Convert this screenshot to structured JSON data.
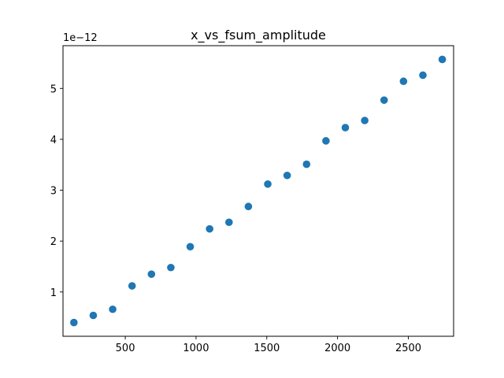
{
  "chart_data": {
    "type": "scatter",
    "title": "x_vs_fsum_amplitude",
    "xlabel": "",
    "ylabel": "",
    "y_offset_label": "1e−12",
    "xlim": [
      60,
      2820
    ],
    "ylim": [
      0.13,
      5.84
    ],
    "x_ticks": [
      500,
      1000,
      1500,
      2000,
      2500
    ],
    "x_tick_labels": [
      "500",
      "1000",
      "1500",
      "2000",
      "2500"
    ],
    "y_ticks": [
      1,
      2,
      3,
      4,
      5
    ],
    "y_tick_labels": [
      "1",
      "2",
      "3",
      "4",
      "5"
    ],
    "grid": false,
    "marker_color": "#1f77b4",
    "series": [
      {
        "x": [
          137,
          274,
          411,
          548,
          685,
          822,
          959,
          1096,
          1233,
          1370,
          1507,
          1644,
          1781,
          1918,
          2055,
          2192,
          2329,
          2466,
          2603,
          2740
        ],
        "y": [
          0.4,
          0.54,
          0.66,
          1.12,
          1.35,
          1.48,
          1.89,
          2.24,
          2.37,
          2.68,
          3.12,
          3.29,
          3.51,
          3.97,
          4.23,
          4.37,
          4.77,
          5.14,
          5.26,
          5.57
        ]
      }
    ]
  }
}
